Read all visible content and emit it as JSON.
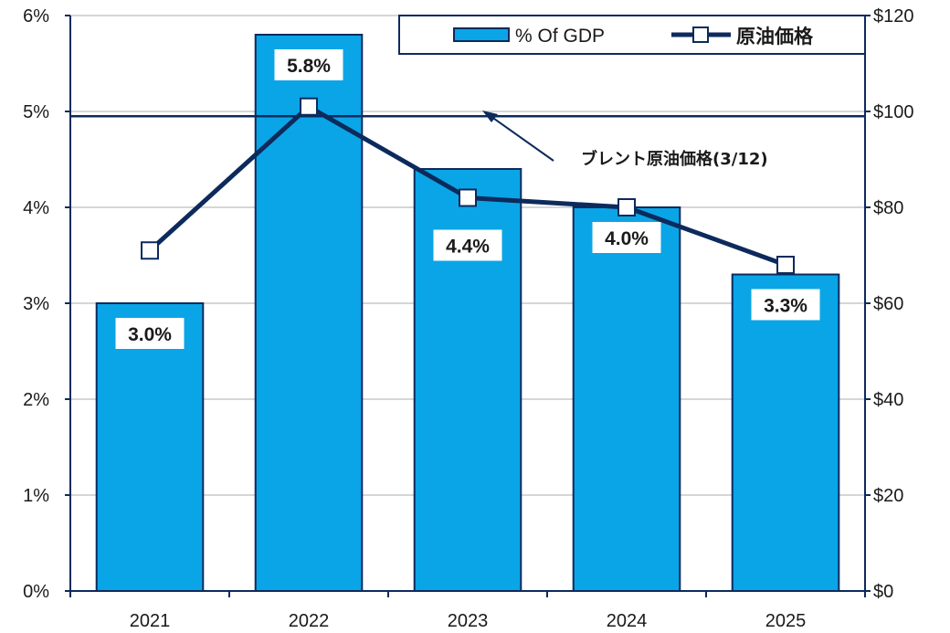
{
  "chart_data": {
    "type": "bar",
    "categories": [
      "2021",
      "2022",
      "2023",
      "2024",
      "2025"
    ],
    "series": [
      {
        "name": "% Of GDP",
        "kind": "bar",
        "axis": "left",
        "values": [
          3.0,
          5.8,
          4.4,
          4.0,
          3.3
        ],
        "labels": [
          "3.0%",
          "5.8%",
          "4.4%",
          "4.0%",
          "3.3%"
        ],
        "color": "#0aa5e6"
      },
      {
        "name": "原油価格",
        "kind": "line",
        "axis": "right",
        "values": [
          71,
          101,
          82,
          80,
          68
        ],
        "color": "#0d2a5c"
      }
    ],
    "y_left": {
      "range": [
        0,
        6
      ],
      "ticks": [
        "0%",
        "1%",
        "2%",
        "3%",
        "4%",
        "5%",
        "6%"
      ]
    },
    "y_right": {
      "range": [
        0,
        120
      ],
      "ticks": [
        "$0",
        "$20",
        "$40",
        "$60",
        "$80",
        "$100",
        "$120"
      ]
    },
    "reference_line": {
      "axis": "right",
      "value": 99
    },
    "annotation": {
      "text": "ブレント原油価格(3/12)"
    },
    "legend": {
      "position": "top-right"
    },
    "grid": true
  }
}
